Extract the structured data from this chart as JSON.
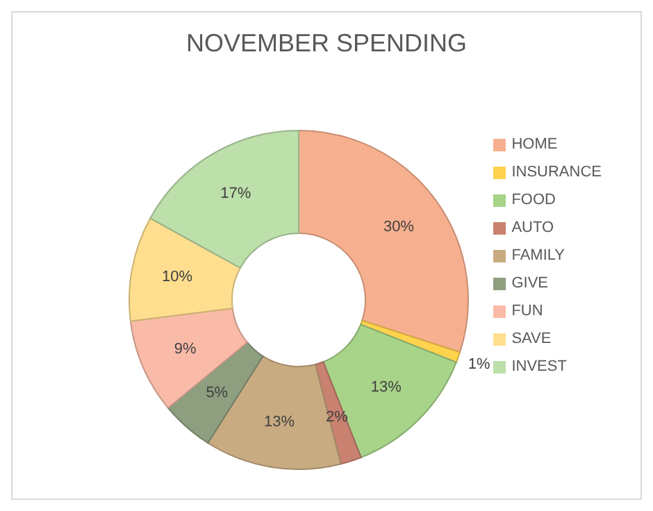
{
  "chart_data": {
    "type": "donut",
    "title": "NOVEMBER SPENDING",
    "categories": [
      "HOME",
      "INSURANCE",
      "FOOD",
      "AUTO",
      "FAMILY",
      "GIVE",
      "FUN",
      "SAVE",
      "INVEST"
    ],
    "values": [
      30,
      1,
      13,
      2,
      13,
      5,
      9,
      10,
      17
    ],
    "value_labels": [
      "30%",
      "1%",
      "13%",
      "2%",
      "13%",
      "5%",
      "9%",
      "10%",
      "17%"
    ],
    "colors": [
      "#f7b08f",
      "#ffd34d",
      "#a8d48a",
      "#c8826f",
      "#c9ab82",
      "#8e9f80",
      "#f9bba8",
      "#ffdf8f",
      "#bddfaa"
    ],
    "legend": "right"
  }
}
